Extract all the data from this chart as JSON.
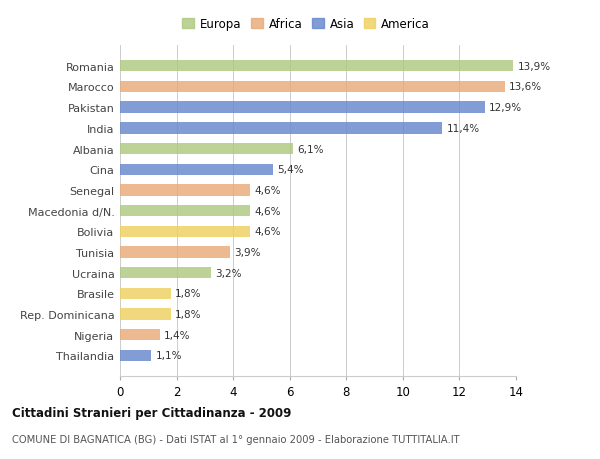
{
  "countries": [
    "Romania",
    "Marocco",
    "Pakistan",
    "India",
    "Albania",
    "Cina",
    "Senegal",
    "Macedonia d/N.",
    "Bolivia",
    "Tunisia",
    "Ucraina",
    "Brasile",
    "Rep. Dominicana",
    "Nigeria",
    "Thailandia"
  ],
  "values": [
    13.9,
    13.6,
    12.9,
    11.4,
    6.1,
    5.4,
    4.6,
    4.6,
    4.6,
    3.9,
    3.2,
    1.8,
    1.8,
    1.4,
    1.1
  ],
  "labels": [
    "13,9%",
    "13,6%",
    "12,9%",
    "11,4%",
    "6,1%",
    "5,4%",
    "4,6%",
    "4,6%",
    "4,6%",
    "3,9%",
    "3,2%",
    "1,8%",
    "1,8%",
    "1,4%",
    "1,1%"
  ],
  "continents": [
    "Europa",
    "Africa",
    "Asia",
    "Asia",
    "Europa",
    "Asia",
    "Africa",
    "Europa",
    "America",
    "Africa",
    "Europa",
    "America",
    "America",
    "Africa",
    "Asia"
  ],
  "colors": {
    "Europa": "#adc880",
    "Africa": "#e8aa78",
    "Asia": "#6688cc",
    "America": "#f0d060"
  },
  "legend_order": [
    "Europa",
    "Africa",
    "Asia",
    "America"
  ],
  "xlim": [
    0,
    14
  ],
  "xticks": [
    0,
    2,
    4,
    6,
    8,
    10,
    12,
    14
  ],
  "title": "Cittadini Stranieri per Cittadinanza - 2009",
  "subtitle": "COMUNE DI BAGNATICA (BG) - Dati ISTAT al 1° gennaio 2009 - Elaborazione TUTTITALIA.IT",
  "bg_color": "#ffffff",
  "grid_color": "#cccccc",
  "bar_height": 0.55
}
